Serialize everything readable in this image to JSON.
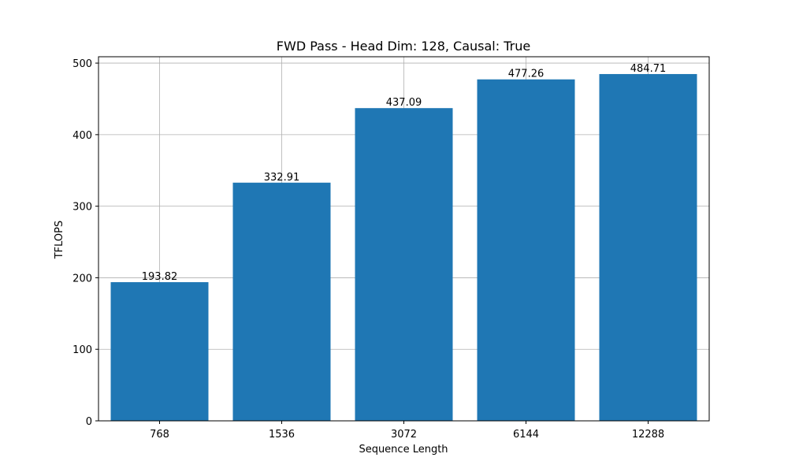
{
  "chart_data": {
    "type": "bar",
    "title": "FWD Pass - Head Dim: 128, Causal: True",
    "xlabel": "Sequence Length",
    "ylabel": "TFLOPS",
    "categories": [
      "768",
      "1536",
      "3072",
      "6144",
      "12288"
    ],
    "values": [
      193.82,
      332.91,
      437.09,
      477.26,
      484.71
    ],
    "value_labels": [
      "193.82",
      "332.91",
      "437.09",
      "477.26",
      "484.71"
    ],
    "ylim": [
      0,
      508.9
    ],
    "yticks": [
      0,
      100,
      200,
      300,
      400,
      500
    ],
    "ytick_labels": [
      "0",
      "100",
      "200",
      "300",
      "400",
      "500"
    ],
    "grid": true,
    "legend": "none",
    "bar_color": "#1f77b4",
    "grid_color": "#b0b0b0"
  }
}
